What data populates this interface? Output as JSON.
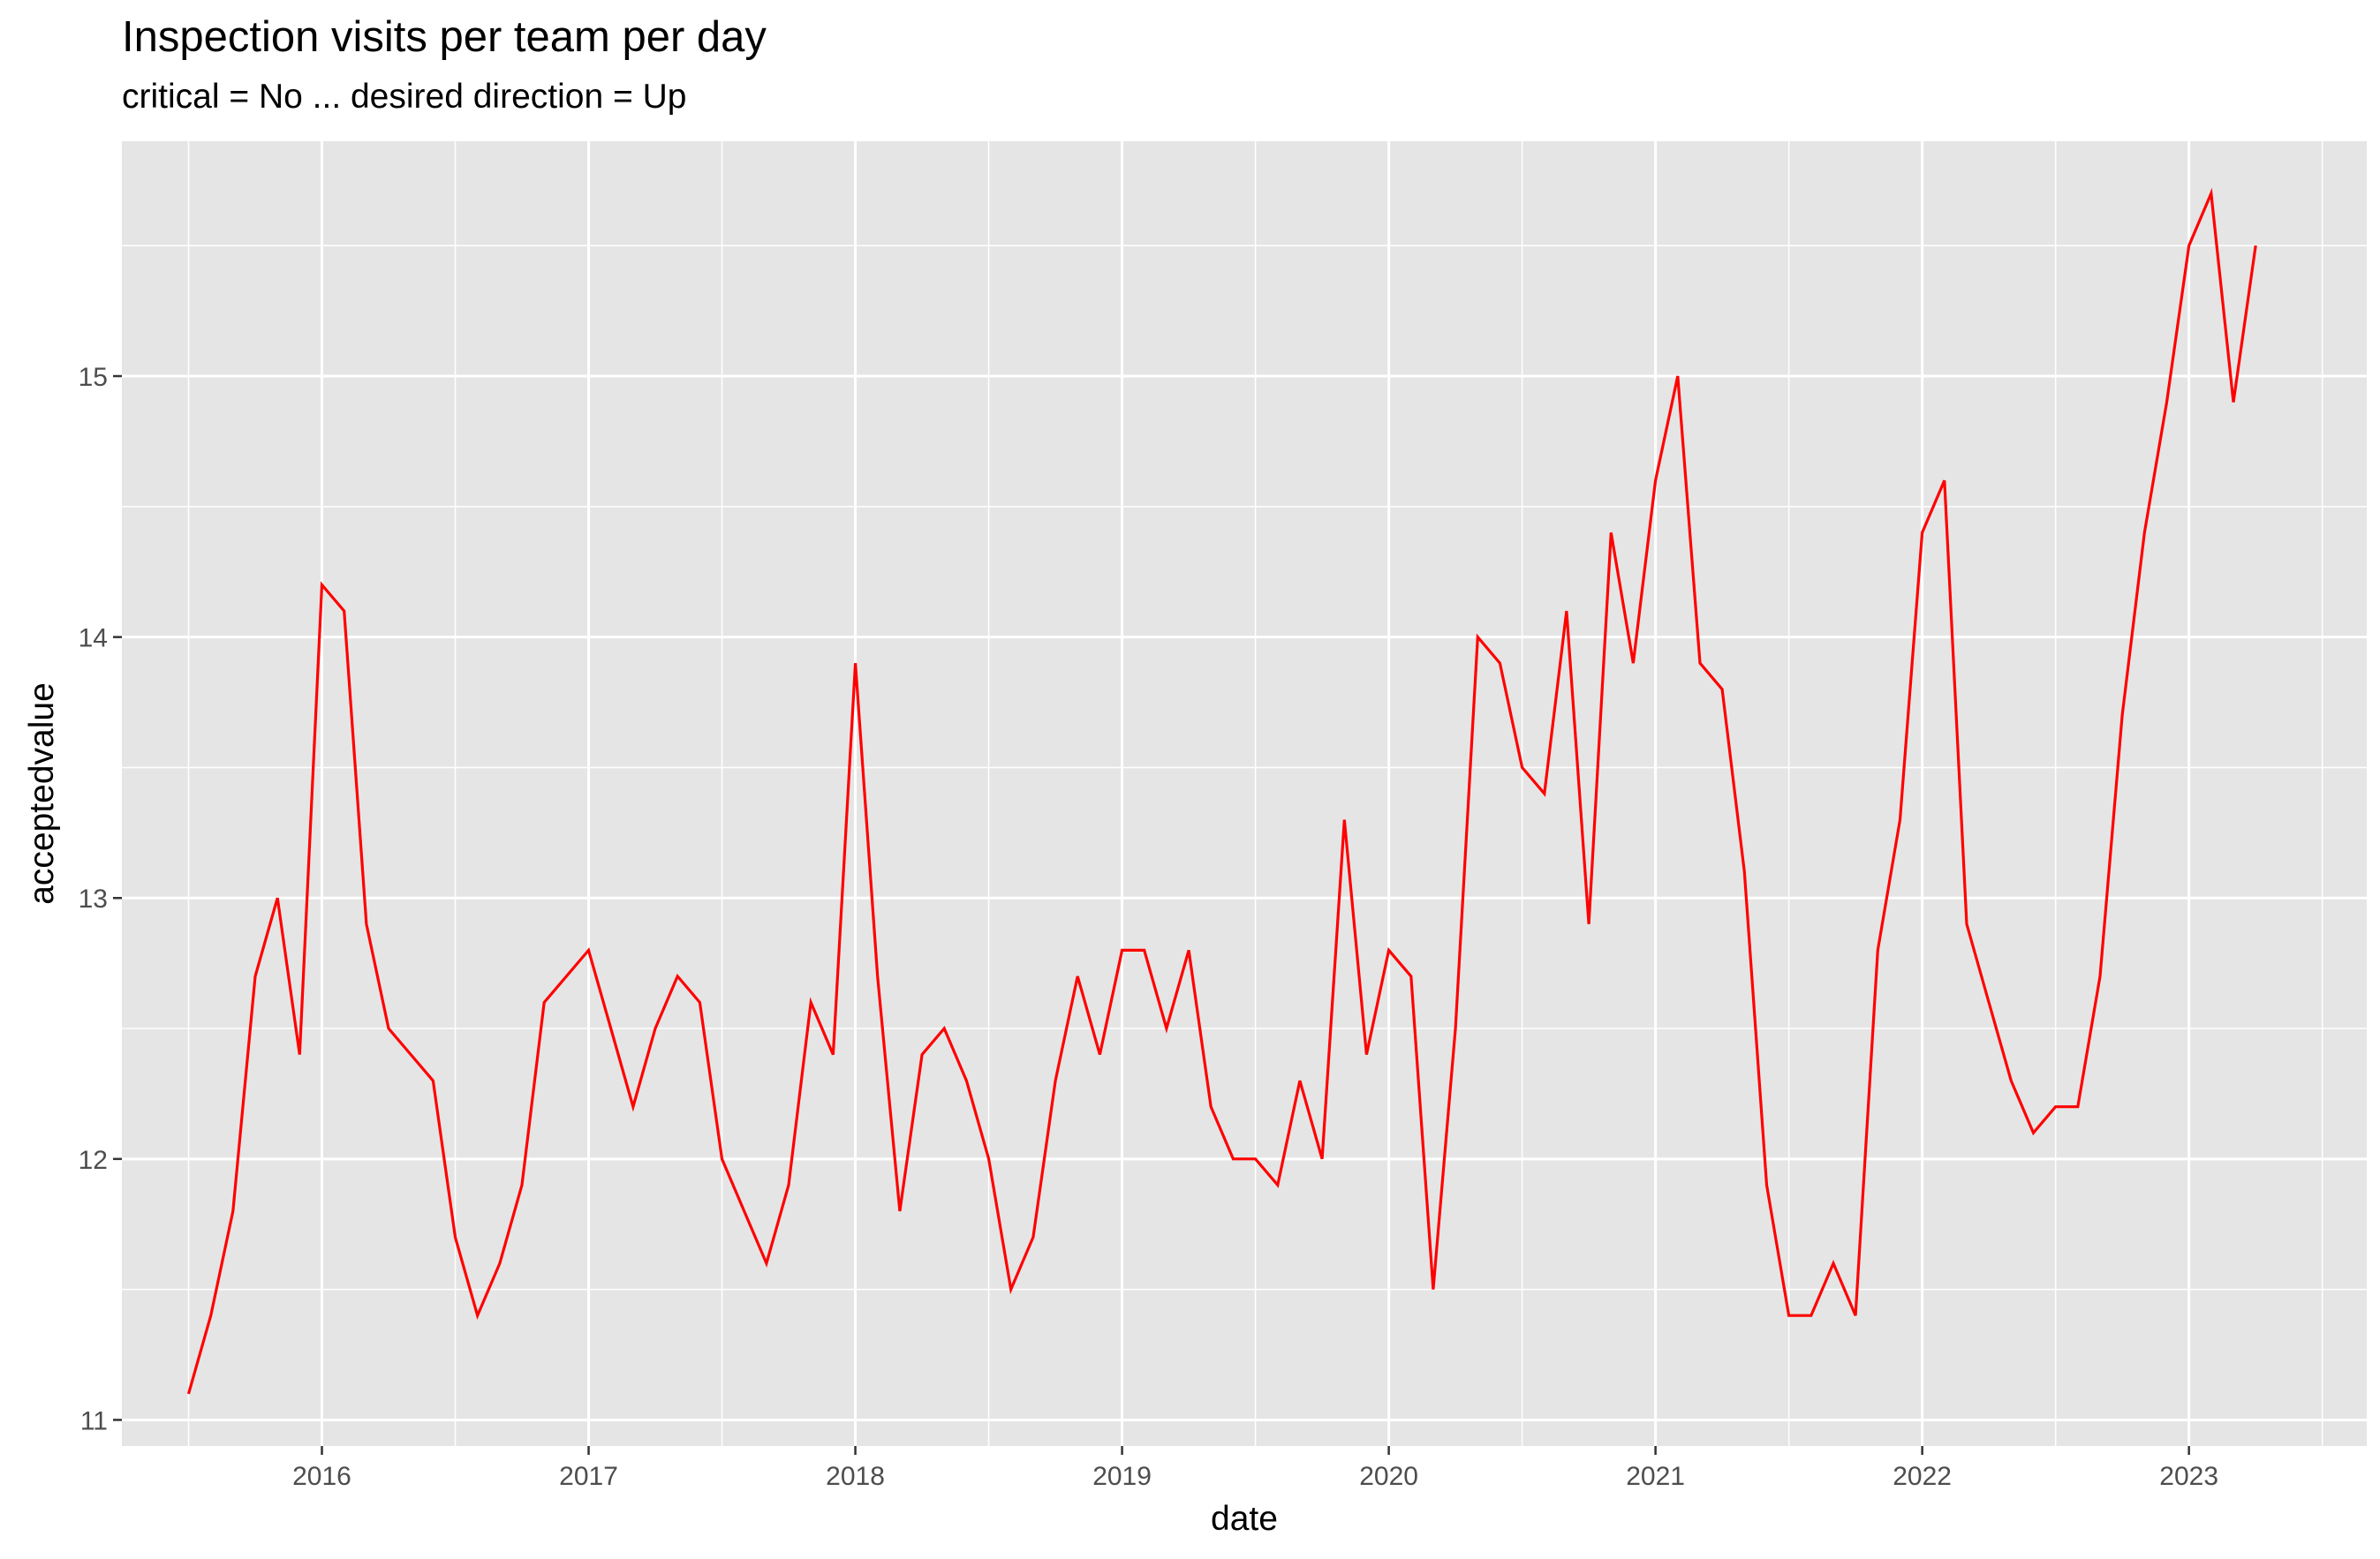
{
  "chart_data": {
    "type": "line",
    "title": "Inspection visits per team per day",
    "subtitle": "critical = No ... desired direction = Up",
    "xlabel": "date",
    "ylabel": "acceptedvalue",
    "x_ticks": [
      "2016",
      "2017",
      "2018",
      "2019",
      "2020",
      "2021",
      "2022",
      "2023"
    ],
    "y_ticks": [
      11,
      12,
      13,
      14,
      15
    ],
    "xlim": [
      "2015-04-01",
      "2023-09-01"
    ],
    "ylim": [
      10.9,
      15.9
    ],
    "grid": true,
    "colors": {
      "line": "#ff0000",
      "panel": "#e5e5e5",
      "grid": "#ffffff"
    },
    "series": [
      {
        "x": [
          "2015-07",
          "2015-08",
          "2015-09",
          "2015-10",
          "2015-11",
          "2015-12",
          "2016-01",
          "2016-02",
          "2016-03",
          "2016-04",
          "2016-05",
          "2016-06",
          "2016-07",
          "2016-08",
          "2016-09",
          "2016-10",
          "2016-11",
          "2016-12",
          "2017-01",
          "2017-02",
          "2017-03",
          "2017-04",
          "2017-05",
          "2017-06",
          "2017-07",
          "2017-08",
          "2017-09",
          "2017-10",
          "2017-11",
          "2017-12",
          "2018-01",
          "2018-02",
          "2018-03",
          "2018-04",
          "2018-05",
          "2018-06",
          "2018-07",
          "2018-08",
          "2018-09",
          "2018-10",
          "2018-11",
          "2018-12",
          "2019-01",
          "2019-02",
          "2019-03",
          "2019-04",
          "2019-05",
          "2019-06",
          "2019-07",
          "2019-08",
          "2019-09",
          "2019-10",
          "2019-11",
          "2019-12",
          "2020-01",
          "2020-02",
          "2020-03",
          "2020-04",
          "2020-05",
          "2020-06",
          "2020-07",
          "2020-08",
          "2020-09",
          "2020-10",
          "2020-11",
          "2020-12",
          "2021-01",
          "2021-02",
          "2021-03",
          "2021-04",
          "2021-05",
          "2021-06",
          "2021-07",
          "2021-08",
          "2021-09",
          "2021-10",
          "2021-11",
          "2021-12",
          "2022-01",
          "2022-02",
          "2022-03",
          "2022-04",
          "2022-05",
          "2022-06",
          "2022-07",
          "2022-08",
          "2022-09",
          "2022-10",
          "2022-11",
          "2022-12",
          "2023-01",
          "2023-02",
          "2023-03",
          "2023-04"
        ],
        "values": [
          11.1,
          11.4,
          11.8,
          12.7,
          13.0,
          12.4,
          14.2,
          14.1,
          12.9,
          12.5,
          12.4,
          12.3,
          11.7,
          11.4,
          11.6,
          11.9,
          12.6,
          12.7,
          12.8,
          12.5,
          12.2,
          12.5,
          12.7,
          12.6,
          12.0,
          11.8,
          11.6,
          11.9,
          12.6,
          12.4,
          13.9,
          12.7,
          11.8,
          12.4,
          12.5,
          12.3,
          12.0,
          11.5,
          11.7,
          12.3,
          12.7,
          12.4,
          12.8,
          12.8,
          12.5,
          12.8,
          12.2,
          12.0,
          12.0,
          11.9,
          12.3,
          12.0,
          13.3,
          12.4,
          12.8,
          12.7,
          11.5,
          12.5,
          14.0,
          13.9,
          13.5,
          13.4,
          14.1,
          12.9,
          14.4,
          13.9,
          14.6,
          15.0,
          13.9,
          13.8,
          13.1,
          11.9,
          11.4,
          11.4,
          11.6,
          11.4,
          12.8,
          13.3,
          14.4,
          14.6,
          12.9,
          12.6,
          12.3,
          12.1,
          12.2,
          12.2,
          12.7,
          13.7,
          14.4,
          14.9,
          15.5,
          15.7,
          14.9,
          15.5
        ]
      }
    ]
  }
}
